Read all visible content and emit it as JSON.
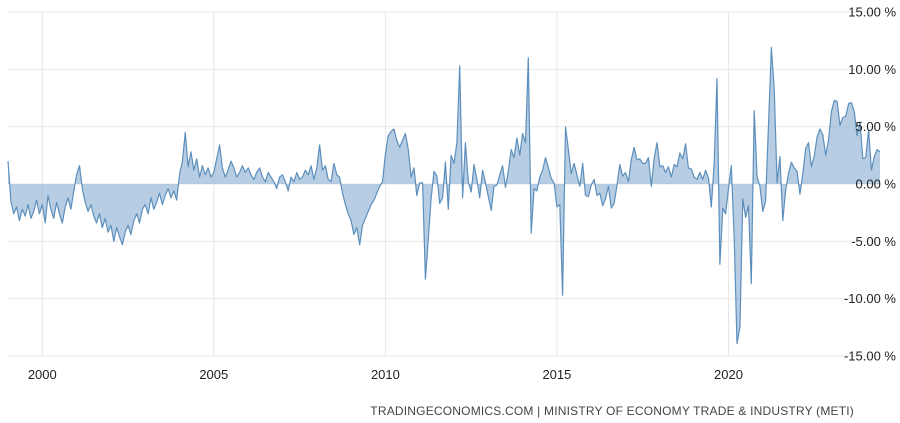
{
  "chart": {
    "y_axis_labels": [
      "15.00 %",
      "10.00 %",
      "5.00 %",
      "0.00 %",
      "-5.00 %",
      "-10.00 %",
      "-15.00 %"
    ],
    "x_axis_labels": [
      "2000",
      "2005",
      "2010",
      "2015",
      "2020"
    ]
  },
  "footer": {
    "text": "TRADINGECONOMICS.COM | MINISTRY OF ECONOMY TRADE & INDUSTRY (METI)"
  },
  "chart_data": {
    "type": "area",
    "title": "",
    "xlabel": "",
    "ylabel": "%",
    "x_start_year": 1999,
    "points_per_year": 12,
    "xlim": [
      1999.0,
      2024.5
    ],
    "ylim": [
      -15,
      15
    ],
    "x_ticks": [
      2000,
      2005,
      2010,
      2015,
      2020
    ],
    "y_ticks": [
      15,
      10,
      5,
      0,
      -5,
      -10,
      -15
    ],
    "grid": true,
    "legend_position": "none",
    "colors": {
      "line": "#5d8fbc",
      "fill": "#8fb2d4",
      "grid": "#e7e7e7",
      "axis_text": "#222222",
      "footer_text": "#444444"
    },
    "series": [
      {
        "name": "series",
        "values": [
          2.0,
          -1.5,
          -2.6,
          -2.0,
          -3.2,
          -2.2,
          -2.8,
          -1.8,
          -3.0,
          -2.4,
          -1.4,
          -2.6,
          -1.8,
          -3.4,
          -1.0,
          -2.2,
          -3.0,
          -1.6,
          -2.6,
          -3.4,
          -2.0,
          -1.2,
          -2.2,
          -0.6,
          0.8,
          1.6,
          -0.4,
          -1.6,
          -2.4,
          -1.8,
          -2.8,
          -3.4,
          -2.6,
          -3.8,
          -3.0,
          -4.2,
          -3.6,
          -5.0,
          -3.8,
          -4.6,
          -5.3,
          -4.2,
          -3.6,
          -4.4,
          -3.2,
          -2.6,
          -3.4,
          -2.2,
          -1.8,
          -2.6,
          -1.2,
          -2.2,
          -1.6,
          -0.8,
          -1.8,
          -1.0,
          -0.4,
          -1.2,
          -0.6,
          -1.4,
          0.8,
          2.0,
          4.5,
          1.5,
          2.8,
          1.2,
          2.2,
          0.6,
          1.6,
          0.8,
          1.4,
          0.6,
          1.0,
          2.2,
          3.4,
          1.4,
          0.6,
          1.2,
          2.0,
          1.4,
          0.6,
          1.0,
          1.6,
          1.0,
          1.4,
          0.8,
          0.4,
          1.0,
          1.4,
          0.6,
          0.2,
          1.0,
          0.6,
          0.2,
          -0.4,
          0.6,
          0.8,
          0.2,
          -0.6,
          0.6,
          0.2,
          1.0,
          0.4,
          0.6,
          1.2,
          0.8,
          1.6,
          0.4,
          1.4,
          3.4,
          1.2,
          1.6,
          0.4,
          0.2,
          1.8,
          0.8,
          0.6,
          -0.8,
          -1.8,
          -2.6,
          -3.2,
          -4.4,
          -3.8,
          -5.3,
          -3.6,
          -3.0,
          -2.4,
          -1.8,
          -1.4,
          -0.8,
          -0.2,
          0.2,
          2.6,
          4.2,
          4.6,
          4.8,
          3.8,
          3.2,
          3.8,
          4.4,
          3.0,
          0.6,
          1.4,
          -1.0,
          0.1,
          0.1,
          -8.3,
          -4.8,
          -1.3,
          1.1,
          0.7,
          -1.7,
          -1.2,
          1.9,
          -2.2,
          2.5,
          1.8,
          3.6,
          10.3,
          -1.2,
          3.6,
          0.2,
          -0.7,
          1.7,
          0.4,
          -1.2,
          1.2,
          0.1,
          -1.1,
          -2.3,
          -0.2,
          -0.1,
          0.8,
          1.6,
          -0.3,
          1.1,
          3.0,
          2.3,
          4.0,
          2.5,
          4.4,
          3.6,
          11.0,
          -4.3,
          -0.4,
          -0.6,
          0.6,
          1.2,
          2.3,
          1.4,
          0.5,
          0.1,
          -2.0,
          -1.8,
          -9.7,
          5.0,
          3.0,
          0.9,
          1.8,
          0.8,
          -0.2,
          1.8,
          -1.0,
          -1.1,
          -0.1,
          0.4,
          -1.0,
          -0.8,
          -1.9,
          -1.3,
          -0.2,
          -2.1,
          -1.7,
          -0.1,
          1.7,
          0.7,
          1.0,
          0.2,
          2.1,
          3.2,
          2.1,
          2.2,
          1.8,
          1.8,
          2.3,
          -0.2,
          2.2,
          3.6,
          1.5,
          1.6,
          1.0,
          1.5,
          0.6,
          1.7,
          1.5,
          2.7,
          2.2,
          3.5,
          1.4,
          1.3,
          0.6,
          0.4,
          1.0,
          0.4,
          1.2,
          0.5,
          -2.0,
          1.8,
          9.2,
          -7.0,
          -2.1,
          -2.6,
          -0.4,
          1.6,
          -4.7,
          -13.9,
          -12.5,
          -1.3,
          -2.9,
          -1.9,
          -8.7,
          6.4,
          0.6,
          -0.2,
          -2.4,
          -1.5,
          5.2,
          11.9,
          8.3,
          0.1,
          2.4,
          -3.2,
          -0.5,
          0.9,
          1.9,
          1.4,
          1.1,
          -0.9,
          0.9,
          3.1,
          3.6,
          1.5,
          2.4,
          4.1,
          4.8,
          4.3,
          2.5,
          3.8,
          6.3,
          7.3,
          7.2,
          5.1,
          5.8,
          5.9,
          7.0,
          7.1,
          6.3,
          4.2,
          5.4,
          2.2,
          2.3,
          4.7,
          1.2,
          2.4,
          3.0,
          2.8
        ]
      }
    ]
  }
}
